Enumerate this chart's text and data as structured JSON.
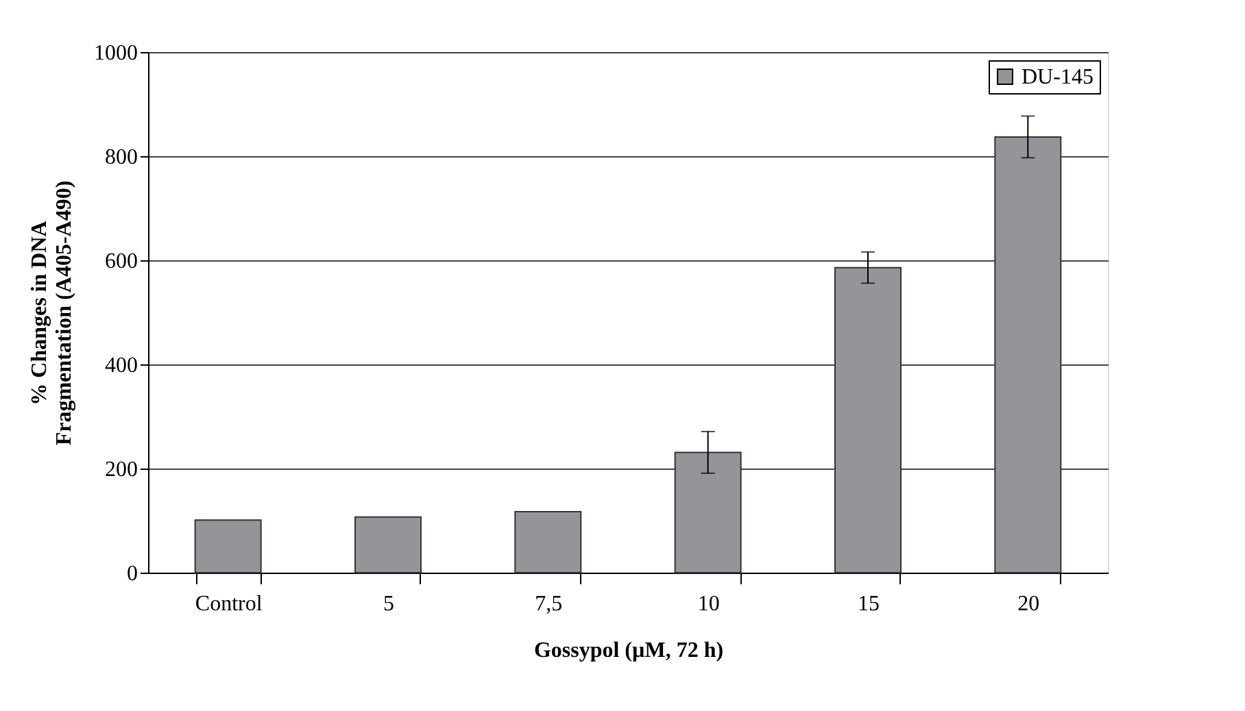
{
  "chart_data": {
    "type": "bar",
    "xlabel": "Gossypol (µM, 72 h)",
    "ylabel": "% Changes in DNA Fragmentation (A405-A490)",
    "categories": [
      "Control",
      "5",
      "7,5",
      "10",
      "15",
      "20"
    ],
    "series": [
      {
        "name": "DU-145",
        "color": "#939598",
        "values": [
          101,
          107,
          117,
          231,
          586,
          837
        ],
        "errors": [
          null,
          null,
          null,
          40,
          30,
          40
        ]
      }
    ],
    "ylim": [
      0,
      1000
    ],
    "yticks": [
      0,
      200,
      400,
      600,
      800,
      1000
    ],
    "grid": "y",
    "legend": "top right"
  }
}
